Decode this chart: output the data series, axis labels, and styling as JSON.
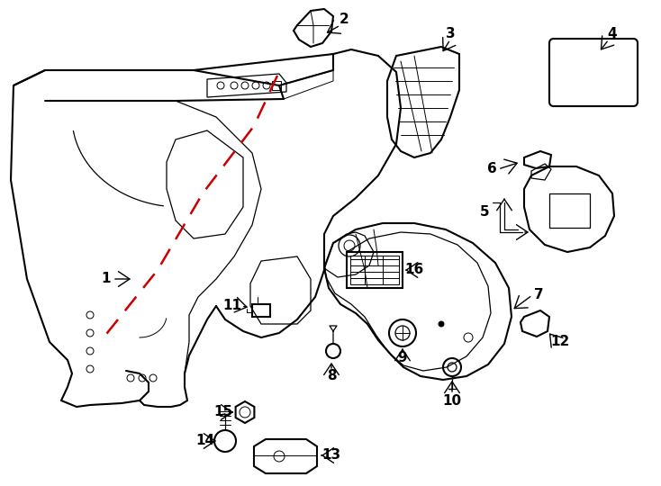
{
  "bg_color": "#ffffff",
  "line_color": "#000000",
  "red_dash_color": "#cc0000",
  "fig_width": 7.34,
  "fig_height": 5.4,
  "dpi": 100
}
